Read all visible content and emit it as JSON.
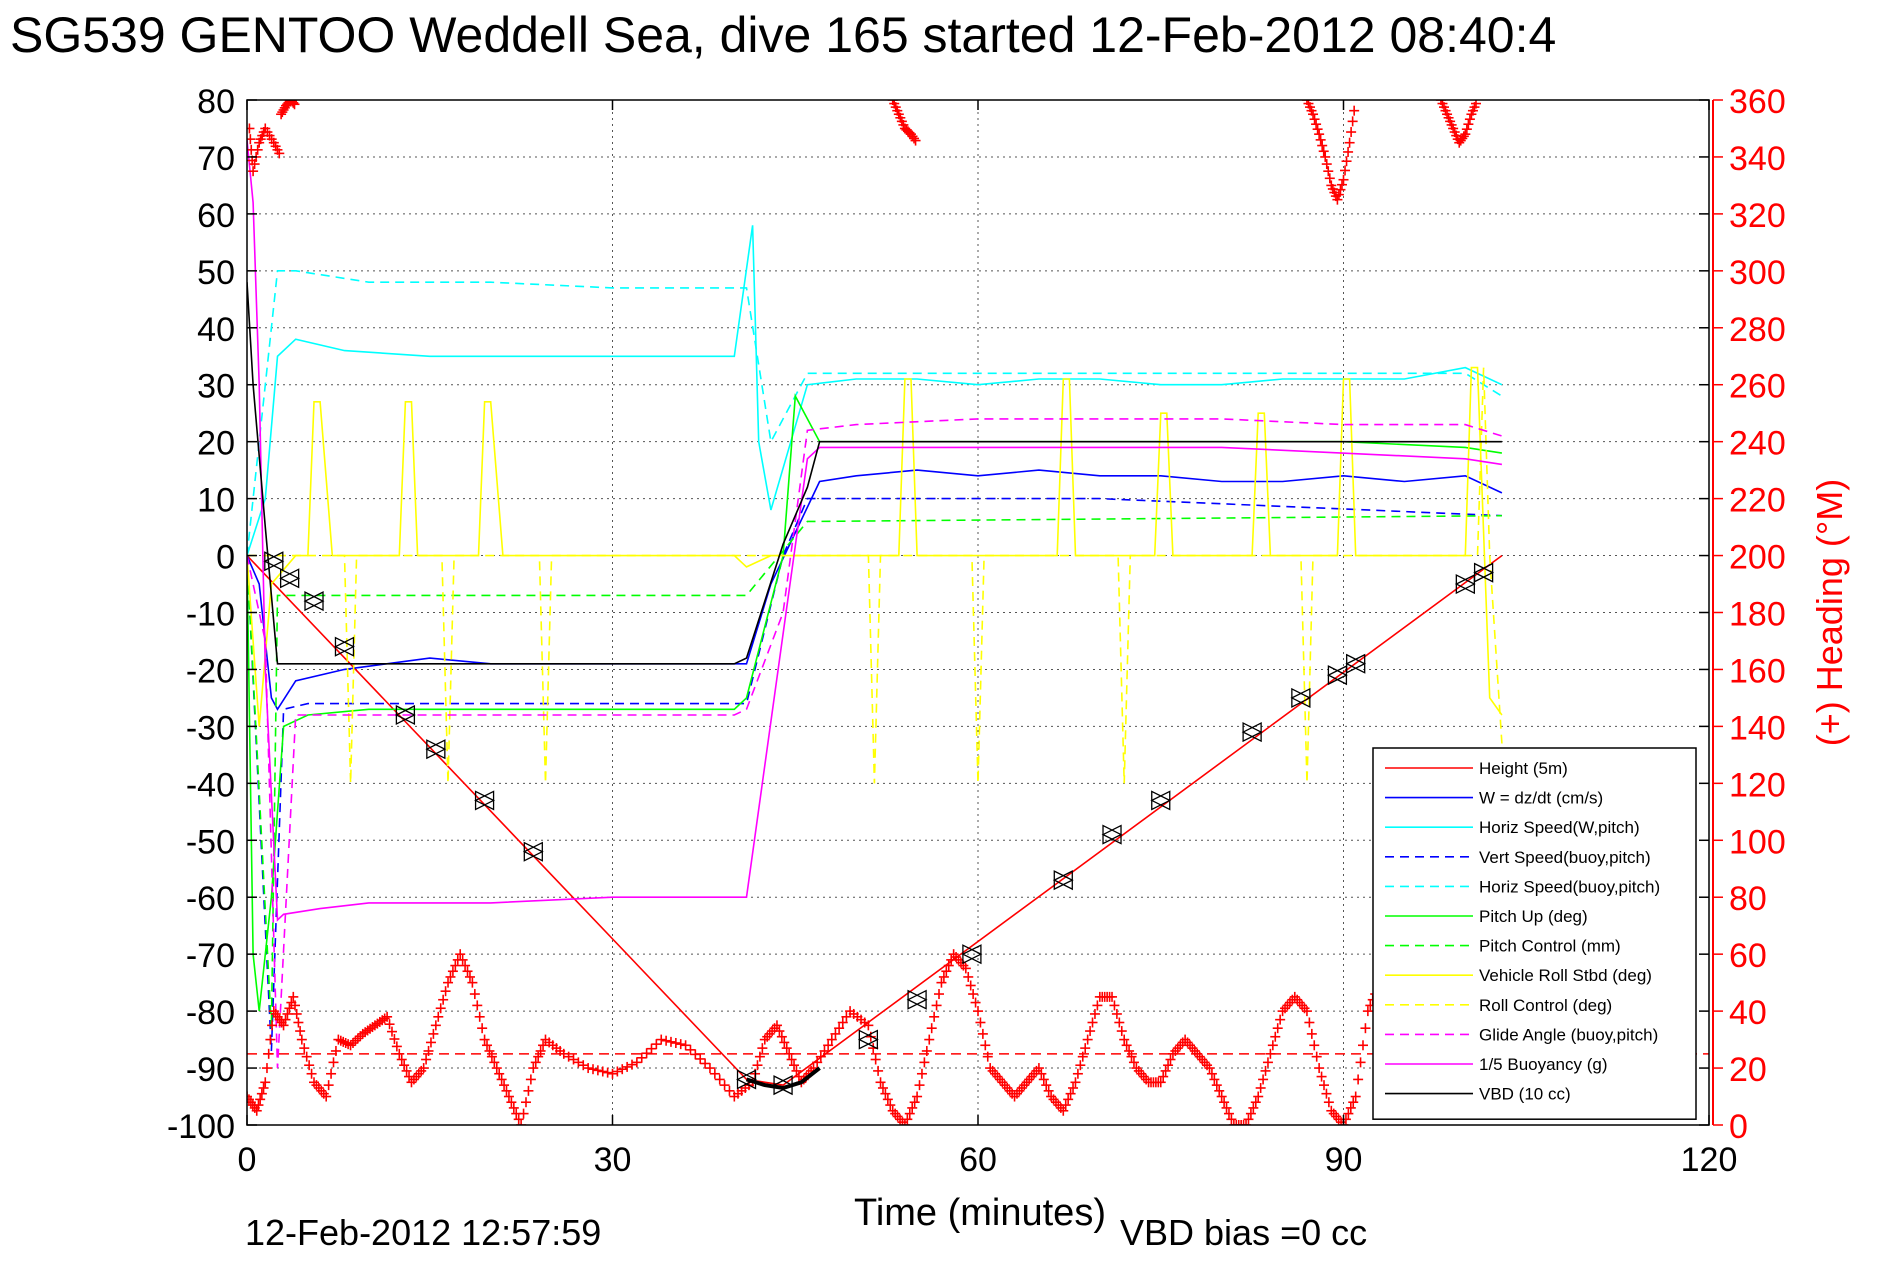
{
  "chart_data": {
    "type": "line",
    "title": "SG539 GENTOO Weddell Sea, dive 165 started 12-Feb-2012 08:40:4",
    "xlabel": "Time (minutes)",
    "ylabel_right": "(+) Heading (°M)",
    "xlim": [
      0,
      120
    ],
    "ylim": [
      -100,
      80
    ],
    "ylim_right": [
      0,
      360
    ],
    "x_ticks": [
      "0",
      "30",
      "60",
      "90",
      "120"
    ],
    "y_ticks": [
      "80",
      "70",
      "60",
      "50",
      "40",
      "30",
      "20",
      "10",
      "0",
      "-10",
      "-20",
      "-30",
      "-40",
      "-50",
      "-60",
      "-70",
      "-80",
      "-90",
      "-100"
    ],
    "y_ticks_right": [
      "360",
      "340",
      "320",
      "300",
      "280",
      "260",
      "240",
      "220",
      "200",
      "180",
      "160",
      "140",
      "120",
      "100",
      "80",
      "60",
      "40",
      "20",
      "0"
    ],
    "grid": true,
    "legend_position": "lower-right",
    "timestamp": "12-Feb-2012 12:57:59",
    "vbd_bias": "VBD bias =0 cc",
    "colors": {
      "red": "#ff0000",
      "blue": "#0000ff",
      "cyan": "#00ffff",
      "green": "#00ff00",
      "yellow": "#ffff00",
      "magenta": "#ff00ff",
      "black": "#000000"
    },
    "series": [
      {
        "name": "Height (5m)",
        "color": "#ff0000",
        "dash": "solid",
        "x": [
          0,
          41,
          44,
          103
        ],
        "y": [
          0,
          -92,
          -93,
          0
        ]
      },
      {
        "name": "W = dz/dt (cm/s)",
        "color": "#0000ff",
        "dash": "solid",
        "x": [
          0,
          1,
          2,
          2.5,
          4,
          8,
          15,
          20,
          25,
          30,
          35,
          41,
          43,
          47,
          50,
          55,
          60,
          65,
          70,
          75,
          80,
          85,
          90,
          95,
          100,
          103
        ],
        "y": [
          0,
          -5,
          -25,
          -27,
          -22,
          -20,
          -18,
          -19,
          -19,
          -19,
          -19,
          -19,
          -5,
          13,
          14,
          15,
          14,
          15,
          14,
          14,
          13,
          13,
          14,
          13,
          14,
          11
        ]
      },
      {
        "name": "Horiz Speed(W,pitch)",
        "color": "#00ffff",
        "dash": "solid",
        "x": [
          0,
          1.5,
          2.5,
          4,
          8,
          15,
          20,
          25,
          30,
          35,
          40,
          41.5,
          42,
          43,
          46,
          50,
          55,
          60,
          65,
          70,
          75,
          80,
          85,
          90,
          95,
          100,
          103
        ],
        "y": [
          0,
          10,
          35,
          38,
          36,
          35,
          35,
          35,
          35,
          35,
          35,
          58,
          20,
          8,
          30,
          31,
          31,
          30,
          31,
          31,
          30,
          30,
          31,
          31,
          31,
          33,
          30
        ]
      },
      {
        "name": "Vert Speed(buoy,pitch)",
        "color": "#0000ff",
        "dash": "dashed",
        "x": [
          0,
          2,
          3,
          5,
          40,
          41,
          44,
          46,
          50,
          70,
          103
        ],
        "y": [
          0,
          -87,
          -27,
          -26,
          -26,
          -26,
          0,
          10,
          10,
          10,
          7
        ]
      },
      {
        "name": "Horiz Speed(buoy,pitch)",
        "color": "#00ffff",
        "dash": "dashed",
        "x": [
          0,
          1.5,
          2.5,
          4,
          10,
          20,
          30,
          40,
          41,
          43,
          46,
          50,
          60,
          70,
          80,
          90,
          100,
          103
        ],
        "y": [
          0,
          30,
          50,
          50,
          48,
          48,
          47,
          47,
          47,
          20,
          32,
          32,
          32,
          32,
          32,
          32,
          32,
          28
        ]
      },
      {
        "name": "Pitch Up (deg)",
        "color": "#00ff00",
        "dash": "solid",
        "x": [
          0,
          0.5,
          1,
          2,
          3,
          5,
          10,
          20,
          30,
          40,
          41,
          44,
          45,
          47,
          50,
          60,
          70,
          80,
          90,
          100,
          103
        ],
        "y": [
          0,
          -70,
          -80,
          -60,
          -30,
          -28,
          -27,
          -27,
          -27,
          -27,
          -25,
          0,
          28,
          20,
          20,
          20,
          20,
          20,
          20,
          19,
          18
        ]
      },
      {
        "name": "Pitch Control (mm)",
        "color": "#00ff00",
        "dash": "dashed",
        "x": [
          0,
          2,
          2.5,
          40,
          41,
          46,
          47,
          103
        ],
        "y": [
          0,
          -83,
          -7,
          -7,
          -7,
          6,
          6,
          7
        ]
      },
      {
        "name": "Vehicle Roll Stbd (deg)",
        "color": "#ffff00",
        "dash": "solid",
        "x": [
          0,
          1,
          2,
          4,
          5,
          5.5,
          6,
          7,
          12.5,
          13,
          13.5,
          14,
          19,
          19.5,
          20,
          21,
          40,
          41,
          43,
          44,
          50,
          53.5,
          54,
          54.5,
          55,
          66.5,
          67,
          67.5,
          68,
          74.5,
          75,
          75.5,
          76,
          82.5,
          83,
          83.5,
          84,
          89.5,
          90,
          90.5,
          91,
          100,
          100.5,
          101,
          102,
          103
        ],
        "y": [
          0,
          -30,
          -5,
          0,
          0,
          27,
          27,
          0,
          0,
          27,
          27,
          0,
          0,
          27,
          27,
          0,
          0,
          -2,
          0,
          0,
          0,
          0,
          31,
          31,
          0,
          0,
          31,
          31,
          0,
          0,
          25,
          25,
          0,
          0,
          25,
          25,
          0,
          0,
          31,
          31,
          0,
          0,
          33,
          33,
          -25,
          -28
        ]
      },
      {
        "name": "Roll Control (deg)",
        "color": "#ffff00",
        "dash": "dashed",
        "x": [
          0,
          2,
          8,
          8.5,
          9,
          16,
          16.5,
          17,
          24,
          24.5,
          25,
          40,
          51,
          51.5,
          52,
          59.5,
          60,
          60.5,
          71.5,
          72,
          72.5,
          86.5,
          87,
          87.5,
          101,
          101.5,
          102,
          103
        ],
        "y": [
          0,
          0,
          0,
          -40,
          0,
          0,
          -40,
          0,
          0,
          -40,
          0,
          0,
          0,
          -40,
          0,
          0,
          -40,
          0,
          0,
          -40,
          0,
          0,
          -40,
          0,
          0,
          33,
          0,
          -33
        ]
      },
      {
        "name": "Glide Angle (buoy,pitch)",
        "color": "#ff00ff",
        "dash": "dashed",
        "x": [
          0,
          1.5,
          2.5,
          4,
          10,
          20,
          30,
          40,
          41,
          44,
          46,
          50,
          60,
          70,
          80,
          90,
          100,
          103
        ],
        "y": [
          0,
          -15,
          -90,
          -28,
          -28,
          -28,
          -28,
          -28,
          -27,
          -10,
          22,
          23,
          24,
          24,
          24,
          23,
          23,
          21
        ]
      },
      {
        "name": "1/5 Buoyancy (g)",
        "color": "#ff00ff",
        "dash": "solid",
        "x": [
          0,
          0.5,
          1,
          1.5,
          2.5,
          3,
          6,
          10,
          20,
          30,
          40,
          41,
          46,
          47,
          60,
          80,
          100,
          103
        ],
        "y": [
          73,
          62,
          30,
          -20,
          -64,
          -63,
          -62,
          -61,
          -61,
          -60,
          -60,
          -60,
          17,
          19,
          19,
          19,
          17,
          16
        ]
      },
      {
        "name": "VBD (10 cc)",
        "color": "#000000",
        "dash": "solid",
        "x": [
          0,
          0.5,
          1.5,
          2.5,
          40,
          41,
          44,
          46,
          47,
          103
        ],
        "y": [
          48,
          30,
          5,
          -19,
          -19,
          -18,
          2,
          12,
          20,
          20
        ]
      }
    ],
    "heading": {
      "name": "(+) Heading",
      "color": "#ff0000",
      "marker": "+",
      "axis": "right",
      "x": [
        0,
        0.8,
        1.5,
        2.2,
        3.0,
        3.8,
        4.5,
        5.5,
        6.5,
        7.5,
        8.5,
        9.5,
        10.5,
        11.5,
        12.5,
        13.5,
        14.5,
        15.5,
        16.5,
        17.5,
        18.5,
        19.5,
        20.5,
        21.5,
        22.5,
        23.5,
        24.5,
        26,
        28,
        30,
        32,
        34,
        36,
        38,
        40,
        41.5,
        42.5,
        43.5,
        44.5,
        45.5,
        46.5,
        48,
        49.5,
        51,
        52,
        53,
        54,
        55,
        56,
        57,
        58,
        59,
        60,
        61,
        62,
        63,
        64,
        65,
        66,
        67,
        68,
        69,
        70,
        71,
        72,
        73,
        74,
        75,
        76,
        77,
        78,
        79,
        80,
        81,
        82,
        83,
        84,
        85,
        86,
        87,
        88,
        89,
        90,
        91,
        92,
        93,
        94,
        95,
        96,
        97,
        98,
        99,
        100,
        101,
        102
      ],
      "y": [
        10,
        5,
        15,
        40,
        35,
        45,
        30,
        15,
        10,
        30,
        28,
        32,
        35,
        38,
        25,
        15,
        20,
        35,
        50,
        60,
        50,
        30,
        20,
        10,
        0,
        20,
        30,
        25,
        20,
        18,
        22,
        30,
        28,
        20,
        10,
        15,
        30,
        35,
        25,
        15,
        20,
        30,
        40,
        35,
        15,
        5,
        0,
        10,
        30,
        50,
        60,
        55,
        40,
        20,
        15,
        10,
        15,
        20,
        10,
        5,
        15,
        30,
        45,
        45,
        30,
        20,
        15,
        15,
        25,
        30,
        25,
        20,
        10,
        0,
        0,
        10,
        25,
        40,
        45,
        40,
        20,
        5,
        0,
        10,
        40,
        50,
        45,
        30,
        25,
        20,
        25,
        30,
        35,
        30,
        20
      ]
    },
    "heading_top": [
      {
        "x": [
          0.2,
          0.5,
          1,
          1.5,
          2.2,
          2.8
        ],
        "y": [
          350,
          335,
          345,
          350,
          345,
          340
        ]
      },
      {
        "x": [
          2.8,
          3.2,
          3.6,
          4.0
        ],
        "y": [
          355,
          358,
          360,
          358
        ]
      },
      {
        "x": [
          53,
          53.5,
          54,
          54.5,
          55
        ],
        "y": [
          360,
          355,
          350,
          348,
          345
        ]
      },
      {
        "x": [
          87,
          87.5,
          88,
          88.5,
          89,
          89.5,
          90,
          90.5,
          91
        ],
        "y": [
          360,
          355,
          348,
          340,
          330,
          325,
          332,
          345,
          360
        ]
      },
      {
        "x": [
          98,
          98.5,
          99,
          99.5,
          100,
          100.5,
          101
        ],
        "y": [
          360,
          355,
          350,
          345,
          348,
          355,
          360
        ]
      }
    ],
    "heading_target": {
      "y": 25,
      "color": "#ff0000",
      "dash": "dashed"
    },
    "triangle_markers": [
      {
        "x": 2.2,
        "y": -1
      },
      {
        "x": 3.5,
        "y": -4
      },
      {
        "x": 5.5,
        "y": -8
      },
      {
        "x": 8,
        "y": -16
      },
      {
        "x": 13,
        "y": -28
      },
      {
        "x": 15.5,
        "y": -34
      },
      {
        "x": 19.5,
        "y": -43
      },
      {
        "x": 23.5,
        "y": -52
      },
      {
        "x": 41,
        "y": -92
      },
      {
        "x": 44,
        "y": -93
      },
      {
        "x": 51,
        "y": -85
      },
      {
        "x": 55,
        "y": -78
      },
      {
        "x": 59.5,
        "y": -70
      },
      {
        "x": 67,
        "y": -57
      },
      {
        "x": 71,
        "y": -49
      },
      {
        "x": 75,
        "y": -43
      },
      {
        "x": 82.5,
        "y": -31
      },
      {
        "x": 86.5,
        "y": -25
      },
      {
        "x": 89.5,
        "y": -21
      },
      {
        "x": 91,
        "y": -19
      },
      {
        "x": 100,
        "y": -5
      },
      {
        "x": 101.5,
        "y": -3
      }
    ],
    "apogee_arc": {
      "x": [
        41,
        42.5,
        44,
        45.5,
        47
      ],
      "y": [
        -92,
        -93,
        -93.5,
        -92.5,
        -90
      ]
    }
  }
}
